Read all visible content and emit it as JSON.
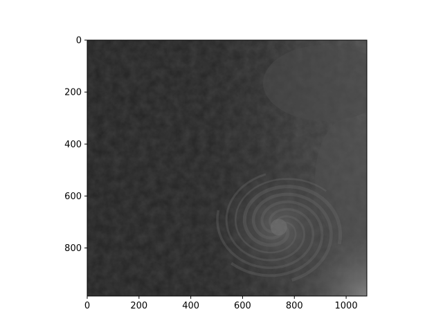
{
  "chart_data": {
    "type": "heatmap",
    "title": "",
    "xlabel": "",
    "ylabel": "",
    "image_content": "grayscale satellite image of a tropical cyclone over ocean, dark left half, cloud swirl lower-right",
    "colormap": "gray",
    "xlim": [
      0,
      1080
    ],
    "ylim": [
      985,
      0
    ],
    "xticks": [
      0,
      200,
      400,
      600,
      800,
      1000
    ],
    "yticks": [
      0,
      200,
      400,
      600,
      800
    ],
    "xtick_labels": [
      "0",
      "200",
      "400",
      "600",
      "800",
      "1000"
    ],
    "ytick_labels": [
      "0",
      "200",
      "400",
      "600",
      "800"
    ],
    "cyclone_center": [
      740,
      720
    ],
    "grid": false
  }
}
